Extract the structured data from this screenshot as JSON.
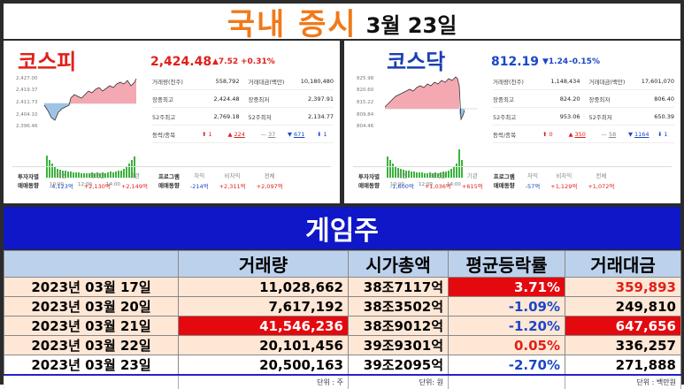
{
  "header": {
    "title": "국내 증시",
    "date": "3월 23일"
  },
  "kospi": {
    "name": "코스피",
    "price": "2,424.48",
    "change": "▲7.52",
    "pct": "+0.31%",
    "y_ticks": [
      "2,427.00",
      "2,419.37",
      "2,411.73",
      "2,404.10",
      "2,396.46"
    ],
    "x_ticks": [
      "10:00",
      "12:00",
      "14:00"
    ],
    "stats": [
      [
        "거래량(천주)",
        "558,792",
        "거래대금(백만)",
        "10,180,480"
      ],
      [
        "장중최고",
        "2,424.48",
        "장중최저",
        "2,397.91"
      ],
      [
        "52주최고",
        "2,769.18",
        "52주최저",
        "2,134.77"
      ]
    ],
    "breadth": {
      "label": "등락/종목",
      "up_limit": "1",
      "up": "224",
      "flat": "37",
      "down": "671",
      "down_limit": "1"
    },
    "investors": {
      "title1": "투자자별",
      "title2": "매매동향",
      "individual_label": "개인",
      "individual": "-4,123억",
      "foreign_label": "외국인",
      "foreign": "+2,130억",
      "inst_label": "기관",
      "inst": "+2,149억",
      "prog_title1": "프로그램",
      "prog_title2": "매매동향",
      "arb_label": "차익",
      "arb": "-214억",
      "nonarb_label": "비차익",
      "nonarb": "+2,311억",
      "total_label": "전체",
      "total": "+2,097억"
    }
  },
  "kosdaq": {
    "name": "코스닥",
    "price": "812.19",
    "change": "▼1.24",
    "pct": "-0.15%",
    "y_ticks": [
      "825.98",
      "820.60",
      "815.22",
      "809.84",
      "804.46"
    ],
    "x_ticks": [
      "10:00",
      "12:00",
      "14:00"
    ],
    "stats": [
      [
        "거래량(천주)",
        "1,148,434",
        "거래대금(백만)",
        "17,601,070"
      ],
      [
        "장중최고",
        "824.20",
        "장중최저",
        "806.40"
      ],
      [
        "52주최고",
        "953.06",
        "52주최저",
        "650.39"
      ]
    ],
    "breadth": {
      "label": "등락/종목",
      "up_limit": "0",
      "up": "350",
      "flat": "58",
      "down": "1164",
      "down_limit": "1"
    },
    "investors": {
      "title1": "투자자별",
      "title2": "매매동향",
      "individual_label": "개인",
      "individual": "-1,600억",
      "foreign_label": "외국인",
      "foreign": "+1,036억",
      "inst_label": "기관",
      "inst": "+615억",
      "prog_title1": "프로그램",
      "prog_title2": "매매동향",
      "arb_label": "차익",
      "arb": "-57억",
      "nonarb_label": "비차익",
      "nonarb": "+1,129억",
      "total_label": "전체",
      "total": "+1,072억"
    }
  },
  "section": {
    "title": "게임주"
  },
  "table": {
    "headers": [
      "",
      "거래량",
      "시가총액",
      "평균등락률",
      "거래대금"
    ],
    "rows": [
      {
        "date": "2023년 03월 17일",
        "volume": "11,028,662",
        "mcap": "38조7117억",
        "change": "3.71%",
        "value": "359,893"
      },
      {
        "date": "2023년 03월 20일",
        "volume": "7,617,192",
        "mcap": "38조3502억",
        "change": "-1.09%",
        "value": "249,810"
      },
      {
        "date": "2023년 03월 21일",
        "volume": "41,546,236",
        "mcap": "38조9012억",
        "change": "-1.20%",
        "value": "647,656"
      },
      {
        "date": "2023년 03월 22일",
        "volume": "20,101,456",
        "mcap": "39조9301억",
        "change": "0.05%",
        "value": "336,257"
      },
      {
        "date": "2023년 03월 23일",
        "volume": "20,500,163",
        "mcap": "39조2095억",
        "change": "-2.70%",
        "value": "271,888"
      }
    ],
    "units": {
      "volume": "단위 : 주",
      "mcap": "단위: 원",
      "value": "단위 : 백만원"
    }
  },
  "colors": {
    "up": "#e0201a",
    "down": "#1a47c8",
    "title_orange": "#f07a1a",
    "band_blue": "#0f17c8",
    "highlight_red": "#e4090e"
  }
}
